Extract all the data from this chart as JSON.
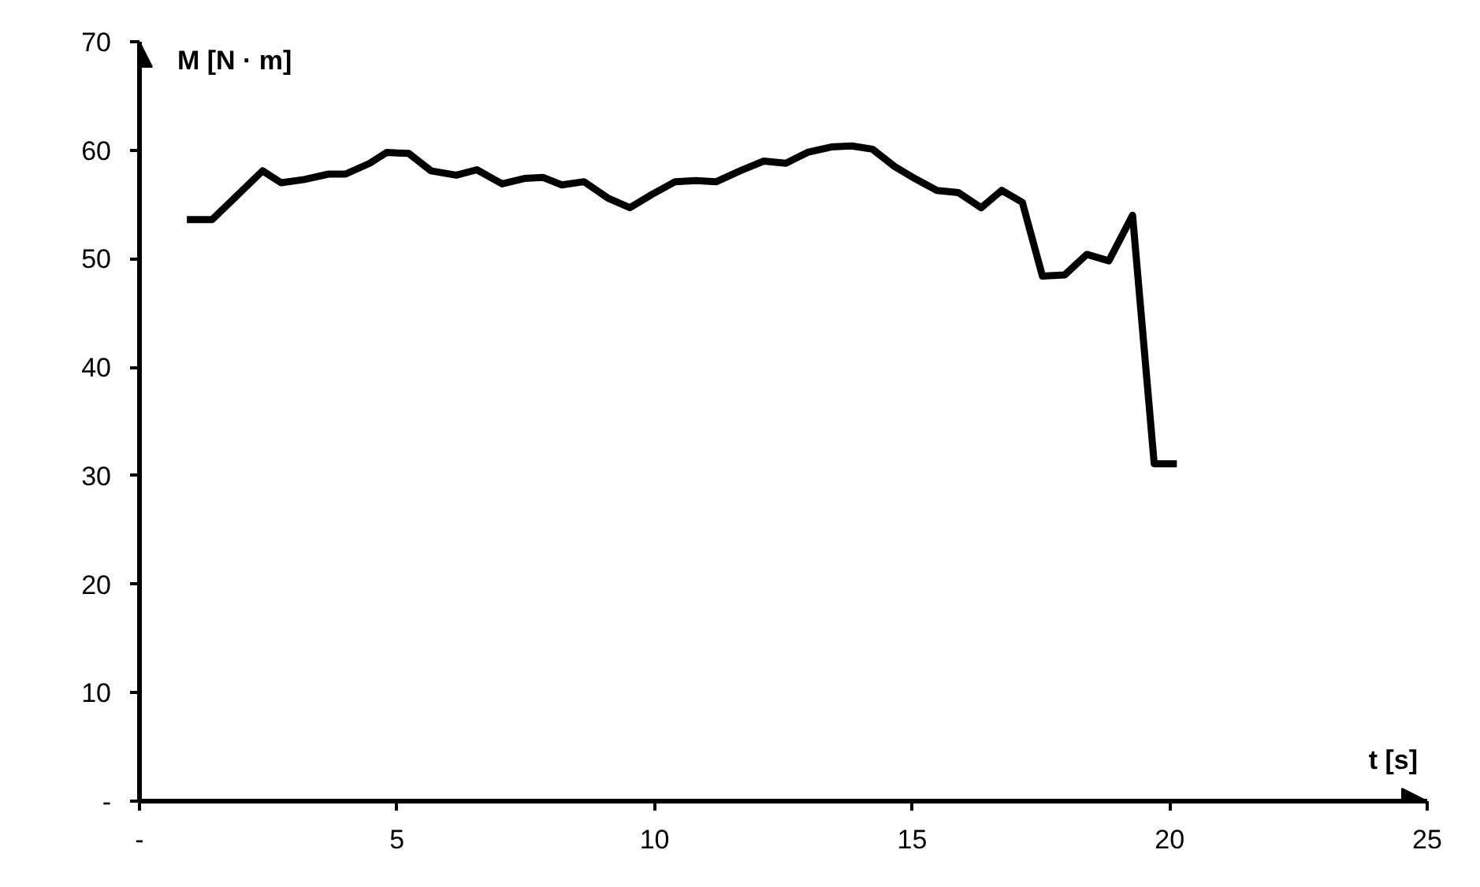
{
  "chart_data": {
    "type": "line",
    "xlabel": "t [s]",
    "ylabel": "M [N · m]",
    "xlim": [
      0,
      25
    ],
    "ylim": [
      0,
      70
    ],
    "xticks": [
      {
        "value": 0,
        "label": "-"
      },
      5,
      10,
      15,
      20,
      25
    ],
    "yticks": [
      {
        "value": 0,
        "label": "-"
      },
      10,
      20,
      30,
      40,
      50,
      60,
      70
    ],
    "grid": false,
    "line_style": "solid",
    "marker": "none",
    "series": [
      {
        "color": "#000000",
        "x": [
          0.92,
          1.41,
          2.39,
          2.75,
          3.2,
          3.67,
          4.0,
          4.47,
          4.8,
          5.23,
          5.66,
          6.15,
          6.55,
          7.04,
          7.47,
          7.83,
          8.2,
          8.63,
          9.09,
          9.52,
          9.94,
          10.4,
          10.8,
          11.2,
          11.66,
          12.12,
          12.55,
          12.97,
          13.43,
          13.83,
          14.23,
          14.66,
          15.05,
          15.48,
          15.9,
          16.34,
          16.74,
          17.14,
          17.53,
          17.96,
          18.39,
          18.82,
          19.28,
          19.7,
          20.14
        ],
        "values": [
          53.6,
          53.6,
          58.1,
          57.0,
          57.3,
          57.8,
          57.8,
          58.8,
          59.8,
          59.7,
          58.1,
          57.7,
          58.2,
          56.9,
          57.4,
          57.5,
          56.8,
          57.1,
          55.6,
          54.7,
          55.9,
          57.1,
          57.2,
          57.1,
          58.1,
          59.0,
          58.8,
          59.8,
          60.3,
          60.4,
          60.1,
          58.5,
          57.4,
          56.3,
          56.1,
          54.7,
          56.3,
          55.2,
          48.4,
          48.5,
          50.4,
          49.8,
          54.0,
          31.1,
          31.1
        ]
      }
    ]
  }
}
